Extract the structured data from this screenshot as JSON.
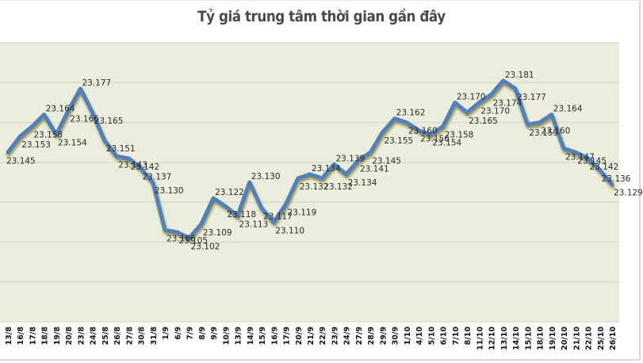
{
  "chart_data": {
    "type": "line",
    "title": "Tỷ giá trung tâm thời gian gần đây",
    "xlabel": "",
    "ylabel": "",
    "ylim": [
      23.06,
      23.2
    ],
    "grid": true,
    "legend": "none",
    "colors": {
      "line": "#4f81bd",
      "plot_background": "#ebeedd",
      "gridline": "#d4d7cc",
      "shadow": "#8a7e3a"
    },
    "categories": [
      "13/8",
      "16/8",
      "17/8",
      "18/8",
      "19/8",
      "20/8",
      "23/8",
      "24/8",
      "25/8",
      "26/8",
      "27/8",
      "30/8",
      "31/8",
      "1/9",
      "6/9",
      "7/9",
      "8/9",
      "9/9",
      "10/9",
      "13/9",
      "14/9",
      "15/9",
      "16/9",
      "17/9",
      "20/9",
      "21/9",
      "22/9",
      "23/9",
      "24/9",
      "27/9",
      "28/9",
      "29/9",
      "30/9",
      "1/10",
      "4/10",
      "5/10",
      "6/10",
      "7/10",
      "8/10",
      "11/10",
      "12/10",
      "13/10",
      "14/10",
      "15/10",
      "18/10",
      "19/10",
      "20/10",
      "21/10",
      "22/10",
      "25/10",
      "26/10"
    ],
    "series": [
      {
        "name": "Tỷ giá trung tâm",
        "values": [
          23.145,
          23.153,
          23.158,
          23.164,
          23.154,
          23.166,
          23.177,
          23.165,
          23.151,
          23.143,
          23.142,
          23.137,
          23.13,
          23.106,
          23.105,
          23.102,
          23.109,
          23.122,
          23.118,
          23.113,
          23.13,
          23.117,
          23.11,
          23.119,
          23.132,
          23.134,
          23.132,
          23.139,
          23.134,
          23.141,
          23.145,
          23.155,
          23.162,
          23.16,
          23.156,
          23.154,
          23.158,
          23.17,
          23.165,
          23.17,
          23.174,
          23.181,
          23.177,
          23.159,
          23.16,
          23.164,
          23.147,
          23.145,
          23.142,
          23.136,
          23.129
        ]
      }
    ],
    "data_labels": [
      "23.145",
      "23.153",
      "23.158",
      "23.164",
      "23.154",
      "23.166",
      "23.177",
      "23.165",
      "23.151",
      "23.143",
      "23.142",
      "23.137",
      "23.130",
      "23.106",
      "23.105",
      "23.102",
      "23.109",
      "23.122",
      "23.118",
      "23.113",
      "23.130",
      "23.117",
      "23.110",
      "23.119",
      "23.132",
      "23.134",
      "23.132",
      "23.139",
      "23.134",
      "23.141",
      "23.145",
      "23.155",
      "23.162",
      "23.160",
      "23.156",
      "23.154",
      "23.158",
      "23.170",
      "23.165",
      "23.170",
      "23.174",
      "23.181",
      "23.177",
      "23.159",
      "23.160",
      "23.164",
      "23.147",
      "23.145",
      "23.142",
      "23.136",
      "23.129"
    ]
  }
}
